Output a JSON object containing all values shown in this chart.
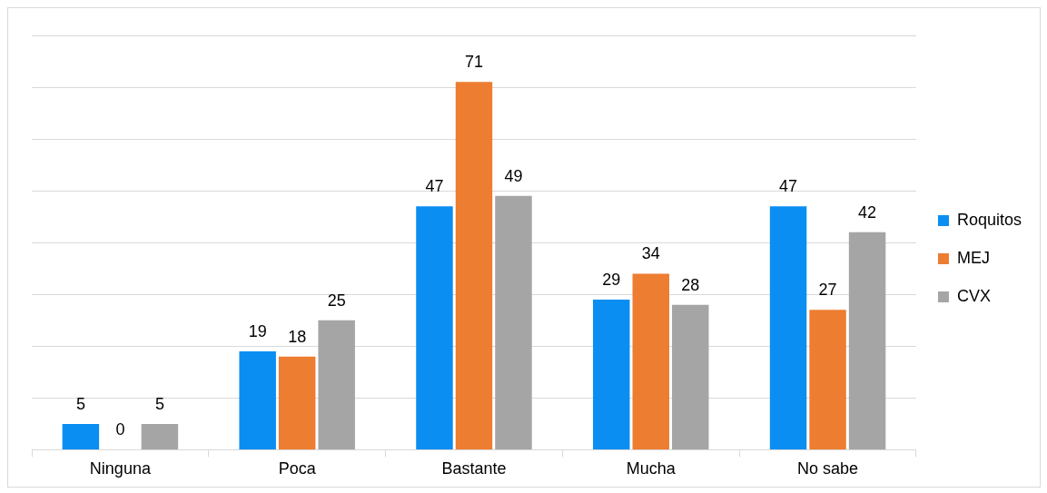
{
  "chart_data": {
    "type": "bar",
    "categories": [
      "Ninguna",
      "Poca",
      "Bastante",
      "Mucha",
      "No sabe"
    ],
    "series": [
      {
        "name": "Roquitos",
        "color": "#0a8ef2",
        "values": [
          5,
          19,
          47,
          29,
          47
        ]
      },
      {
        "name": "MEJ",
        "color": "#ed7d31",
        "values": [
          0,
          18,
          71,
          34,
          27
        ]
      },
      {
        "name": "CVX",
        "color": "#a5a5a5",
        "values": [
          5,
          25,
          49,
          28,
          42
        ]
      }
    ],
    "ylim": [
      0,
      80
    ],
    "yticks": [
      {
        "value": 0,
        "label": null
      },
      {
        "value": 10,
        "label": null
      },
      {
        "value": 20,
        "label": null
      },
      {
        "value": 30,
        "label": null
      },
      {
        "value": 40,
        "label": null
      },
      {
        "value": 50,
        "label": null
      },
      {
        "value": 60,
        "label": null
      },
      {
        "value": 70,
        "label": null
      },
      {
        "value": 80,
        "label": null
      }
    ],
    "grid": "y",
    "legend": "right",
    "data_labels": true
  }
}
